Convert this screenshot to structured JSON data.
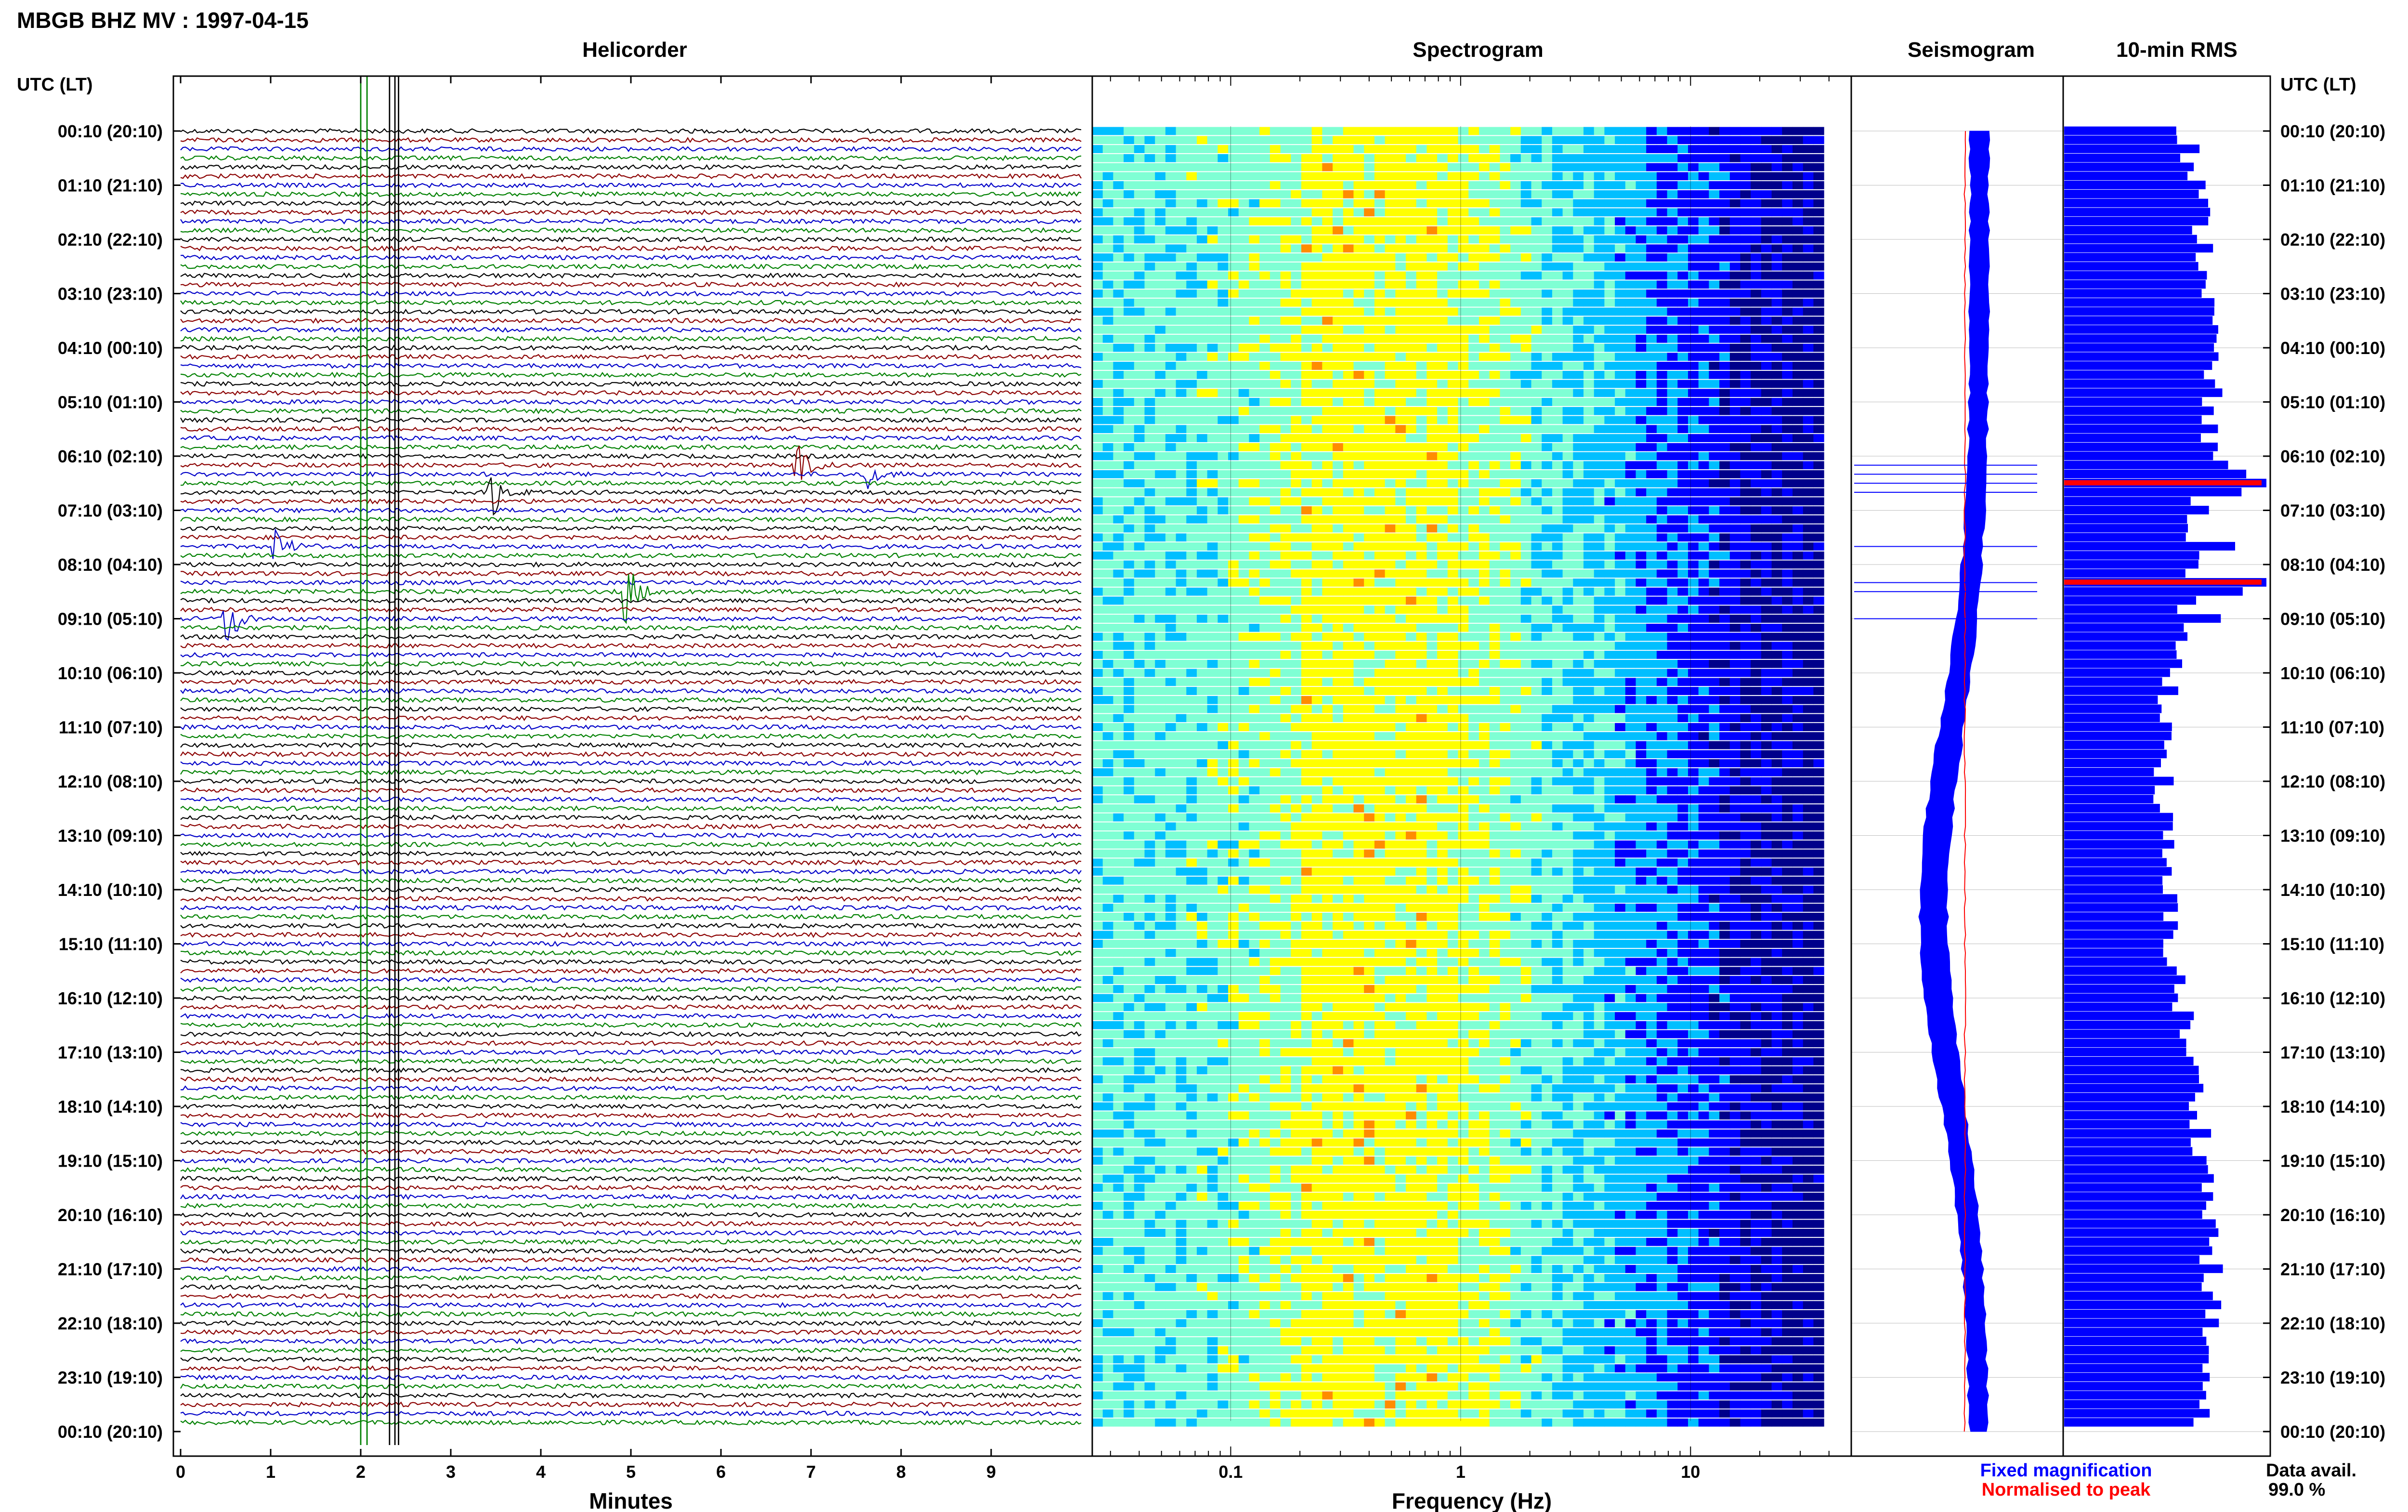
{
  "header": {
    "station_title": "MBGB BHZ MV : 1997-04-15"
  },
  "time_axis": {
    "label": "UTC (LT)",
    "ticks": [
      "00:10 (20:10)",
      "01:10 (21:10)",
      "02:10 (22:10)",
      "03:10 (23:10)",
      "04:10 (00:10)",
      "05:10 (01:10)",
      "06:10 (02:10)",
      "07:10 (03:10)",
      "08:10 (04:10)",
      "09:10 (05:10)",
      "10:10 (06:10)",
      "11:10 (07:10)",
      "12:10 (08:10)",
      "13:10 (09:10)",
      "14:10 (10:10)",
      "15:10 (11:10)",
      "16:10 (12:10)",
      "17:10 (13:10)",
      "18:10 (14:10)",
      "19:10 (15:10)",
      "20:10 (16:10)",
      "21:10 (17:10)",
      "22:10 (18:10)",
      "23:10 (19:10)",
      "00:10 (20:10)"
    ]
  },
  "footer": {
    "legend_fixed": "Fixed magnification",
    "legend_normalised": "Normalised to peak",
    "data_avail_label": "Data avail.",
    "data_avail_value": "99.0 %"
  },
  "colors": {
    "trace_cycle": [
      "#000000",
      "#8b0000",
      "#0000c8",
      "#008000"
    ],
    "fixed": "#0000ff",
    "normalised": "#ff0000"
  },
  "chart_data": [
    {
      "type": "line",
      "title": "Helicorder",
      "xlabel": "Minutes",
      "xlim": [
        0,
        10
      ],
      "x_ticks": [
        "0",
        "1",
        "2",
        "3",
        "4",
        "5",
        "6",
        "7",
        "8",
        "9"
      ],
      "rows": 144,
      "row_minutes": 10,
      "events": [
        {
          "row": 54,
          "minute": 0.45,
          "amp": 1.6,
          "dur": 0.7
        },
        {
          "row": 46,
          "minute": 1.0,
          "amp": 1.4,
          "dur": 0.6
        },
        {
          "row": 40,
          "minute": 3.4,
          "amp": 1.5,
          "dur": 0.6
        },
        {
          "row": 51,
          "minute": 4.9,
          "amp": 1.6,
          "dur": 0.7
        },
        {
          "row": 37,
          "minute": 6.8,
          "amp": 1.3,
          "dur": 0.6
        },
        {
          "row": 38,
          "minute": 7.6,
          "amp": 1.2,
          "dur": 0.5
        }
      ]
    },
    {
      "type": "heatmap",
      "title": "Spectrogram",
      "xlabel": "Frequency (Hz)",
      "x_scale": "log",
      "xlim": [
        0.025,
        50
      ],
      "x_ticks": [
        "0.1",
        "1",
        "10"
      ],
      "colormap": [
        "#00008b",
        "#0000ff",
        "#00bfff",
        "#7fffd4",
        "#ffff00",
        "#ff8c00",
        "#ff0000"
      ]
    },
    {
      "type": "line",
      "title": "Seismogram",
      "series": [
        {
          "name": "Fixed magnification",
          "color": "#0000ff"
        },
        {
          "name": "Normalised to peak",
          "color": "#ff0000"
        }
      ]
    },
    {
      "type": "bar",
      "title": "10-min RMS",
      "rows": 144,
      "highlight_rows": [
        39,
        50
      ]
    }
  ]
}
